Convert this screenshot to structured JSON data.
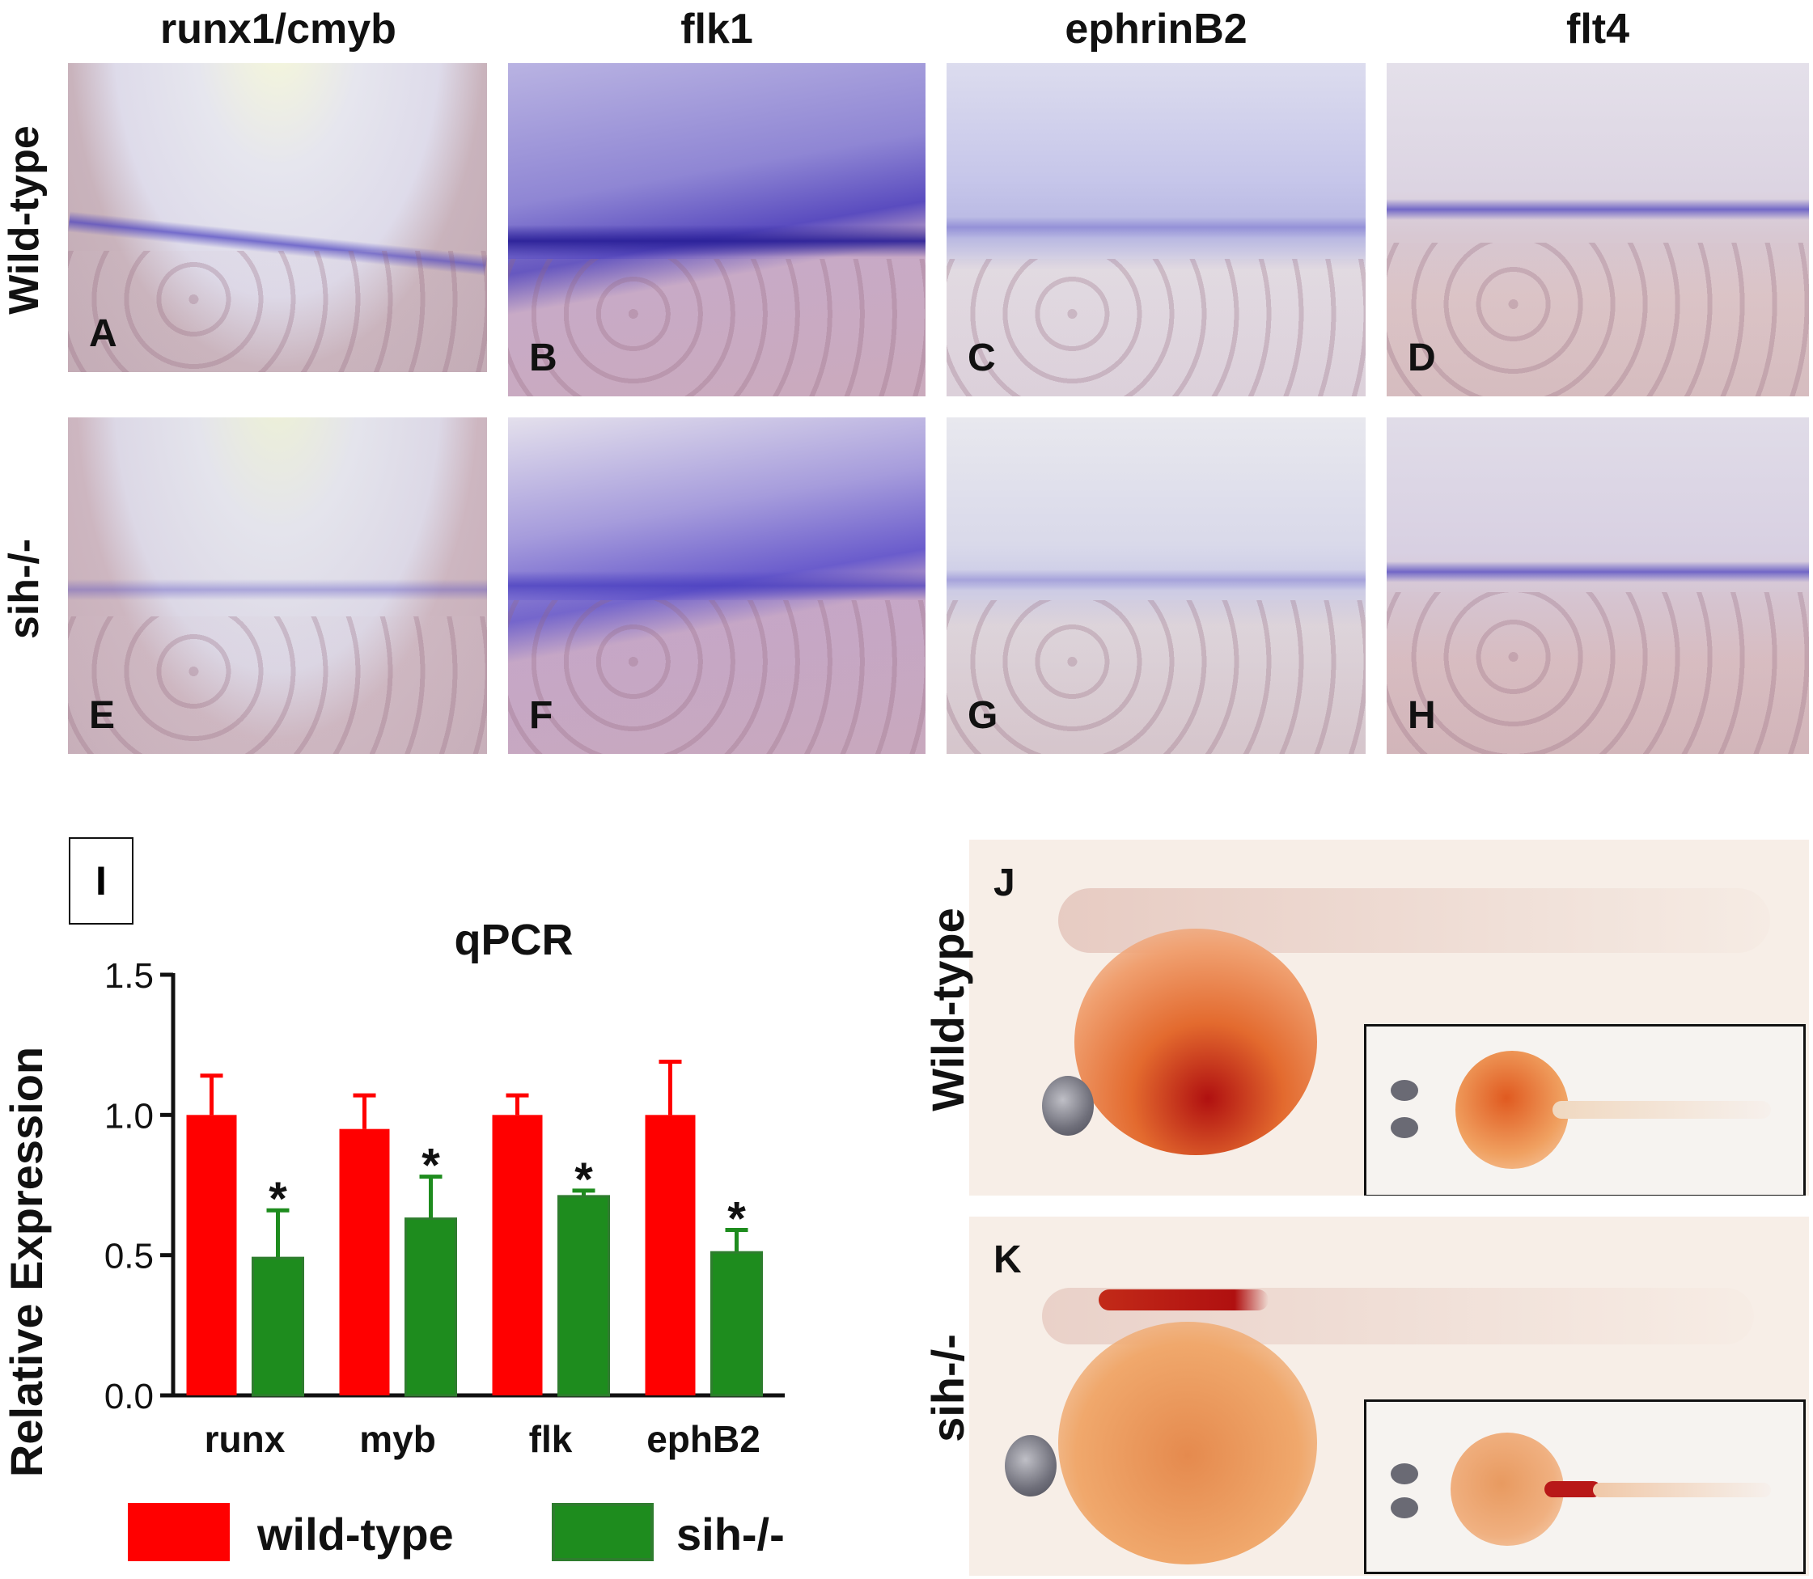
{
  "colors": {
    "wild_type": "#ff0000",
    "sih": "#1e8c1e",
    "sih_border": "#2e7d2e",
    "stain": "#4b3fbf",
    "ink": "#111111"
  },
  "column_headers": [
    "runx1/cmyb",
    "flk1",
    "ephrinB2",
    "flt4"
  ],
  "row_labels": {
    "top": "Wild-type",
    "bottom": "sih-/-"
  },
  "panel_letters": [
    "A",
    "B",
    "C",
    "D",
    "E",
    "F",
    "G",
    "H"
  ],
  "chart_panel_letter": "I",
  "fish_panels": {
    "j": {
      "letter": "J",
      "label": "Wild-type"
    },
    "k": {
      "letter": "K",
      "label": "sih-/-"
    }
  },
  "legend": [
    {
      "label": "wild-type",
      "color": "#ff0000"
    },
    {
      "label": "sih-/-",
      "color": "#1e8c1e"
    }
  ],
  "chart_data": {
    "type": "bar",
    "title": "qPCR",
    "xlabel": "",
    "ylabel": "Relative Expression",
    "ylim": [
      0.0,
      1.5
    ],
    "yticks": [
      "0.0",
      "0.5",
      "1.0",
      "1.5"
    ],
    "categories": [
      "runx",
      "myb",
      "flk",
      "ephB2"
    ],
    "series": [
      {
        "name": "wild-type",
        "values": [
          1.0,
          0.95,
          1.0,
          1.0
        ],
        "errors": [
          0.14,
          0.12,
          0.07,
          0.19
        ],
        "marks": [
          "",
          "",
          "",
          ""
        ]
      },
      {
        "name": "sih-/-",
        "values": [
          0.49,
          0.63,
          0.71,
          0.51
        ],
        "errors": [
          0.17,
          0.15,
          0.02,
          0.08
        ],
        "marks": [
          "*",
          "*",
          "*",
          "*"
        ]
      }
    ],
    "grid": false,
    "legend": "bottom"
  }
}
